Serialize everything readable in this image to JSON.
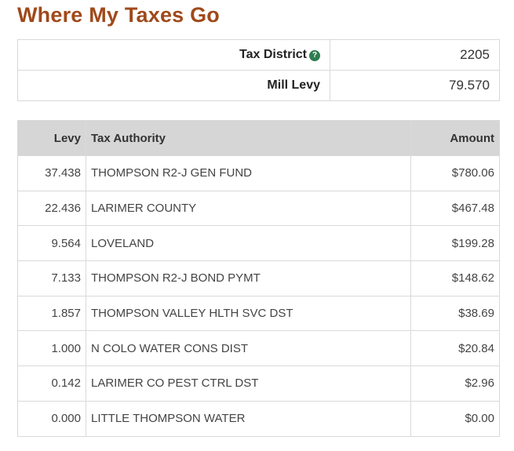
{
  "title": "Where My Taxes Go",
  "summary": {
    "district_label": "Tax District",
    "district_value": "2205",
    "mill_label": "Mill Levy",
    "mill_value": "79.570",
    "help_icon": "question-circle-icon"
  },
  "levy_table": {
    "headers": {
      "levy": "Levy",
      "authority": "Tax Authority",
      "amount": "Amount"
    },
    "rows": [
      {
        "levy": "37.438",
        "authority": "THOMPSON R2-J GEN FUND",
        "amount": "$780.06"
      },
      {
        "levy": "22.436",
        "authority": "LARIMER COUNTY",
        "amount": "$467.48"
      },
      {
        "levy": "9.564",
        "authority": "LOVELAND",
        "amount": "$199.28"
      },
      {
        "levy": "7.133",
        "authority": "THOMPSON R2-J BOND PYMT",
        "amount": "$148.62"
      },
      {
        "levy": "1.857",
        "authority": "THOMPSON VALLEY HLTH SVC DST",
        "amount": "$38.69"
      },
      {
        "levy": "1.000",
        "authority": "N COLO WATER CONS DIST",
        "amount": "$20.84"
      },
      {
        "levy": "0.142",
        "authority": "LARIMER CO PEST CTRL DST",
        "amount": "$2.96"
      },
      {
        "levy": "0.000",
        "authority": "LITTLE THOMPSON WATER",
        "amount": "$0.00"
      }
    ]
  },
  "colors": {
    "title": "#a0491a",
    "header_bg": "#d6d6d6",
    "help_icon": "#2e7d4f"
  }
}
